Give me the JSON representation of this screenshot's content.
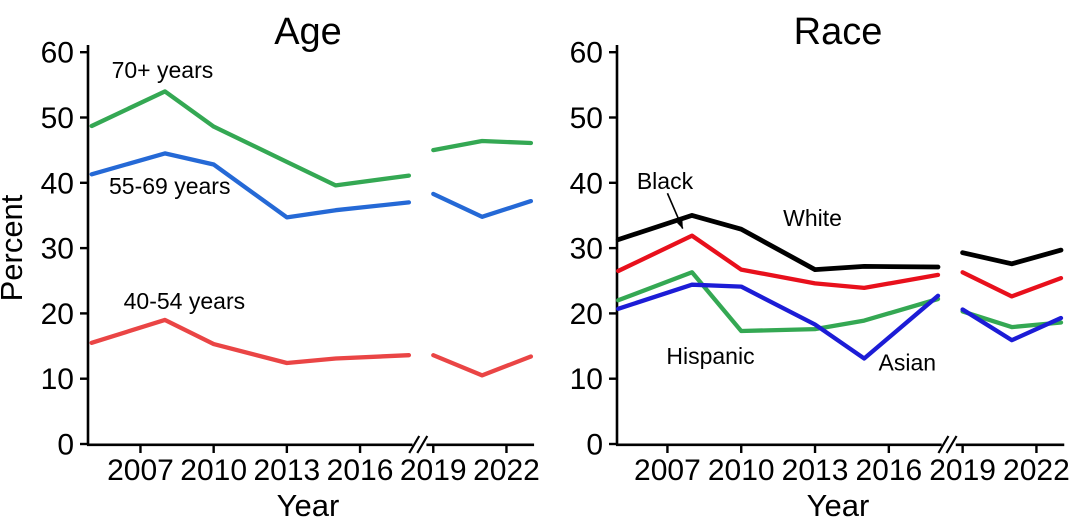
{
  "figure": {
    "background": "#ffffff",
    "text_color": "#000000",
    "description": "Two-panel line chart of screening percentage trends by Age group and by Race, 2005-2023, with an axis break between 2018 and 2019"
  },
  "chart_data": [
    {
      "type": "line",
      "title": "Age",
      "xlabel": "Year",
      "ylabel": "Percent",
      "ylim": [
        0,
        60
      ],
      "yticks": [
        0,
        10,
        20,
        30,
        40,
        50,
        60
      ],
      "xticks": [
        2007,
        2010,
        2013,
        2016,
        2019,
        2022
      ],
      "grid": false,
      "legend": "direct-labels",
      "axis_break_between": [
        2018,
        2019
      ],
      "x_pre": [
        2005,
        2008,
        2010,
        2013,
        2015,
        2018
      ],
      "x_post": [
        2019,
        2021,
        2023
      ],
      "series": [
        {
          "name": "70+ years",
          "color": "#34a853",
          "values_pre": [
            48.7,
            54.0,
            48.6,
            43.2,
            39.6,
            41.1
          ],
          "values_post": [
            45.0,
            46.4,
            46.1
          ]
        },
        {
          "name": "55-69 years",
          "color": "#2569d6",
          "values_pre": [
            41.3,
            44.5,
            42.8,
            34.7,
            35.8,
            37.0
          ],
          "values_post": [
            38.3,
            34.8,
            37.2
          ]
        },
        {
          "name": "40-54 years",
          "color": "#ea4545",
          "values_pre": [
            15.5,
            19.0,
            15.3,
            12.4,
            13.1,
            13.6
          ],
          "values_post": [
            13.6,
            10.5,
            13.4
          ]
        }
      ],
      "annotations": [
        {
          "text": "70+ years",
          "x": 2007.9,
          "y": 57.3
        },
        {
          "text": "55-69 years",
          "x": 2008.2,
          "y": 39.5
        },
        {
          "text": "40-54 years",
          "x": 2008.8,
          "y": 21.9
        }
      ]
    },
    {
      "type": "line",
      "title": "Race",
      "xlabel": "Year",
      "ylabel": "",
      "ylim": [
        0,
        60
      ],
      "yticks": [
        0,
        10,
        20,
        30,
        40,
        50,
        60
      ],
      "xticks": [
        2007,
        2010,
        2013,
        2016,
        2019,
        2022
      ],
      "grid": false,
      "legend": "direct-labels",
      "axis_break_between": [
        2018,
        2019
      ],
      "x_pre": [
        2005,
        2008,
        2010,
        2013,
        2015,
        2018
      ],
      "x_post": [
        2019,
        2021,
        2023
      ],
      "series": [
        {
          "name": "Hispanic",
          "color": "#34a853",
          "values_pre": [
            22.0,
            26.3,
            17.3,
            17.6,
            18.9,
            22.2
          ],
          "values_post": [
            20.3,
            17.9,
            18.6
          ]
        },
        {
          "name": "Asian",
          "color": "#1c1cd6",
          "values_pre": [
            20.7,
            24.4,
            24.1,
            18.3,
            13.1,
            22.7
          ],
          "values_post": [
            20.6,
            15.9,
            19.3
          ]
        },
        {
          "name": "Black",
          "color": "#e8101c",
          "values_pre": [
            26.5,
            31.9,
            26.7,
            24.6,
            23.9,
            25.9
          ],
          "values_post": [
            26.3,
            22.6,
            25.4
          ]
        },
        {
          "name": "White",
          "color": "#000000",
          "values_pre": [
            31.3,
            35.0,
            32.9,
            26.7,
            27.2,
            27.1
          ],
          "values_post": [
            29.3,
            27.6,
            29.7
          ]
        }
      ],
      "annotations": [
        {
          "text": "Black",
          "x": 2006.9,
          "y": 40.3,
          "arrow": {
            "from": [
              2007.0,
              38.4
            ],
            "to": [
              2007.62,
              33.0
            ]
          }
        },
        {
          "text": "White",
          "x": 2012.9,
          "y": 34.6
        },
        {
          "text": "Hispanic",
          "x": 2008.75,
          "y": 13.5
        },
        {
          "text": "Asian",
          "x": 2016.75,
          "y": 12.5
        }
      ]
    }
  ]
}
